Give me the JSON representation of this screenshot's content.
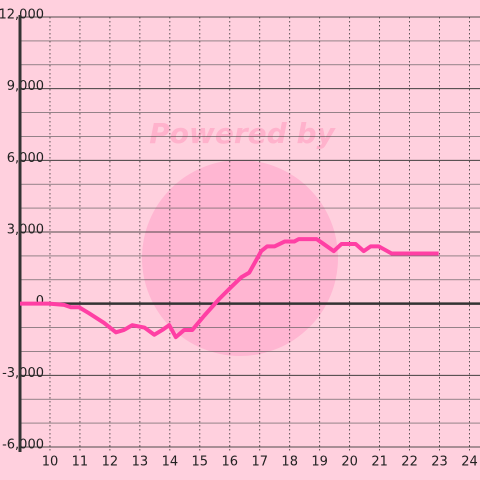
{
  "chart_data": {
    "type": "line",
    "watermark": "Powered by",
    "x": [
      9,
      9.97,
      10.47,
      10.7,
      10.97,
      11.3,
      11.8,
      12.2,
      12.47,
      12.75,
      13.15,
      13.48,
      13.75,
      13.98,
      14.2,
      14.48,
      14.75,
      15.15,
      15.65,
      16.05,
      16.38,
      16.65,
      17.05,
      17.25,
      17.5,
      17.83,
      18.15,
      18.3,
      18.9,
      19.13,
      19.47,
      19.73,
      20.2,
      20.47,
      20.7,
      20.97,
      21.4,
      22.97
    ],
    "series": [
      {
        "color": "#ff3fa4",
        "values": [
          0,
          0,
          -50,
          -150,
          -150,
          -400,
          -800,
          -1200,
          -1100,
          -900,
          -1000,
          -1300,
          -1100,
          -900,
          -1400,
          -1100,
          -1100,
          -500,
          200,
          700,
          1100,
          1300,
          2200,
          2400,
          2400,
          2600,
          2600,
          2700,
          2700,
          2500,
          2200,
          2500,
          2500,
          2200,
          2400,
          2400,
          2100,
          2100
        ]
      }
    ],
    "xlim": [
      9,
      24.35
    ],
    "xticks": [
      10,
      11,
      12,
      13,
      14,
      15,
      16,
      17,
      18,
      19,
      20,
      21,
      22,
      23,
      24
    ],
    "ylim": [
      -6000,
      12000
    ],
    "yticks": [
      {
        "value": 12000,
        "label": "12,000"
      },
      {
        "value": 9000,
        "label": "9,000"
      },
      {
        "value": 6000,
        "label": "6,000"
      },
      {
        "value": 3000,
        "label": "3,000"
      },
      0,
      {
        "value": -3000,
        "label": "-3,000"
      },
      {
        "value": -6000,
        "label": "-6,000"
      }
    ],
    "grid": true
  }
}
